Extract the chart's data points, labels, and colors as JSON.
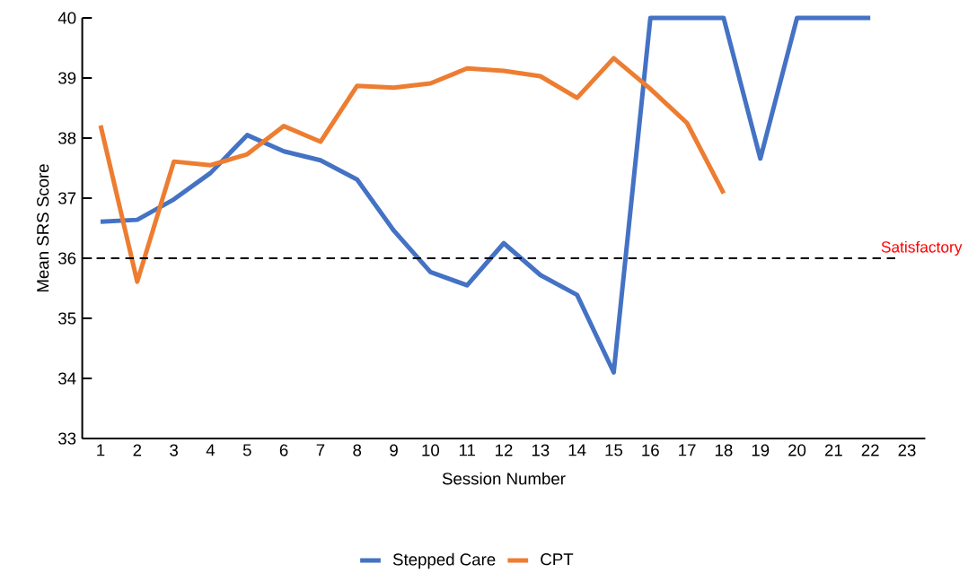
{
  "chart_data": {
    "type": "line",
    "xlabel": "Session Number",
    "ylabel": "Mean SRS Score",
    "categories": [
      "1",
      "2",
      "3",
      "4",
      "5",
      "6",
      "7",
      "8",
      "9",
      "10",
      "11",
      "12",
      "13",
      "14",
      "15",
      "16",
      "17",
      "18",
      "19",
      "20",
      "21",
      "22",
      "23"
    ],
    "series": [
      {
        "name": "Stepped Care",
        "color": "#4472c4",
        "values": [
          36.61,
          36.64,
          36.98,
          37.42,
          38.05,
          37.78,
          37.63,
          37.31,
          36.46,
          35.77,
          35.55,
          36.25,
          35.72,
          35.39,
          34.1,
          40,
          40,
          40,
          37.66,
          40,
          40,
          40,
          null
        ]
      },
      {
        "name": "CPT",
        "color": "#ed7d31",
        "values": [
          38.21,
          35.61,
          37.61,
          37.55,
          37.73,
          38.2,
          37.94,
          38.87,
          38.84,
          38.91,
          39.16,
          39.12,
          39.03,
          38.67,
          39.33,
          38.82,
          38.25,
          37.08,
          null,
          null,
          null,
          null,
          null
        ]
      }
    ],
    "ylim": [
      33,
      40
    ],
    "yticks": [
      33,
      34,
      35,
      36,
      37,
      38,
      39,
      40
    ],
    "ref_lines": [
      {
        "axis": "y",
        "value": 36,
        "label": "Satisfactory",
        "color": "#000000",
        "line_style": "dashed"
      }
    ],
    "legend": "bottom",
    "grid": false,
    "marker": "none",
    "line_style": "solid"
  }
}
